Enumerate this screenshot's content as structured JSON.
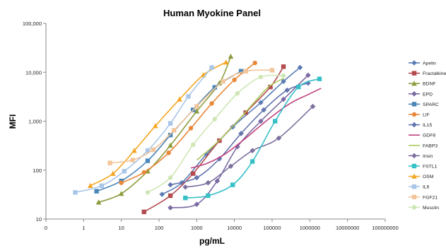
{
  "chart_data": {
    "type": "line",
    "title": "Human Myokine Panel",
    "xlabel": "pg/mL",
    "ylabel": "MFI",
    "x_scale": "log",
    "y_scale": "log",
    "xlim": [
      0.1,
      100000000
    ],
    "ylim": [
      10,
      100000
    ],
    "x_ticks": [
      "0",
      "1",
      "10",
      "100",
      "1000",
      "10000",
      "100000",
      "1000000",
      "10000000",
      "100000000"
    ],
    "y_ticks": [
      "10",
      "100",
      "1,000",
      "10,000",
      "100,000"
    ],
    "grid": false,
    "legend_position": "right",
    "series": [
      {
        "name": "Apelin",
        "color": "#5b7db5",
        "marker": "diamond",
        "points": [
          [
            120,
            32
          ],
          [
            400,
            55
          ],
          [
            1800,
            210
          ],
          [
            9000,
            760
          ],
          [
            50000,
            2400
          ],
          [
            200000,
            6500
          ],
          [
            550000,
            12500
          ]
        ]
      },
      {
        "name": "Fractalkine",
        "color": "#b24a4e",
        "marker": "square",
        "points": [
          [
            40,
            14
          ],
          [
            200,
            30
          ],
          [
            800,
            85
          ],
          [
            4000,
            400
          ],
          [
            20000,
            1500
          ],
          [
            90000,
            5000
          ],
          [
            200000,
            13000
          ]
        ]
      },
      {
        "name": "BDNF",
        "color": "#8c9a3c",
        "marker": "triangle",
        "points": [
          [
            2.5,
            22
          ],
          [
            10,
            33
          ],
          [
            50,
            95
          ],
          [
            200,
            320
          ],
          [
            1000,
            1600
          ],
          [
            4000,
            6000
          ],
          [
            8000,
            21000
          ]
        ]
      },
      {
        "name": "EPD",
        "color": "#7a6aa3",
        "marker": "diamond",
        "points": [
          [
            200,
            17
          ],
          [
            1000,
            20
          ],
          [
            3500,
            60
          ],
          [
            12000,
            300
          ],
          [
            50000,
            1000
          ],
          [
            200000,
            2800
          ],
          [
            900000,
            8700
          ]
        ]
      },
      {
        "name": "SPARC",
        "color": "#4a86b8",
        "marker": "square",
        "points": [
          [
            2.2,
            37
          ],
          [
            10,
            60
          ],
          [
            50,
            155
          ],
          [
            200,
            520
          ],
          [
            800,
            1700
          ],
          [
            3000,
            4900
          ],
          [
            15000,
            10500
          ]
        ]
      },
      {
        "name": "LIF",
        "color": "#e8883a",
        "marker": "circle",
        "points": [
          [
            10,
            55
          ],
          [
            40,
            90
          ],
          [
            180,
            225
          ],
          [
            700,
            720
          ],
          [
            2500,
            2300
          ],
          [
            10000,
            7000
          ],
          [
            35000,
            15500
          ]
        ]
      },
      {
        "name": "IL15",
        "color": "#6474ae",
        "marker": "diamond",
        "points": [
          [
            200,
            50
          ],
          [
            1000,
            70
          ],
          [
            4000,
            170
          ],
          [
            15000,
            560
          ],
          [
            60000,
            1700
          ],
          [
            250000,
            4300
          ],
          [
            900000,
            6000
          ]
        ]
      },
      {
        "name": "GDF8",
        "color": "#c0427e",
        "marker": "none",
        "points": [
          [
            700,
            110
          ],
          [
            2000,
            140
          ],
          [
            6000,
            220
          ],
          [
            20000,
            450
          ],
          [
            80000,
            1100
          ],
          [
            300000,
            2300
          ],
          [
            900000,
            3500
          ],
          [
            2000000,
            4700
          ]
        ]
      },
      {
        "name": "FABP3",
        "color": "#a9c95a",
        "marker": "none",
        "points": [
          [
            1000,
            160
          ],
          [
            3000,
            330
          ],
          [
            10000,
            850
          ],
          [
            30000,
            2200
          ],
          [
            80000,
            5000
          ],
          [
            200000,
            7500
          ]
        ]
      },
      {
        "name": "Irisin",
        "color": "#7d6f9e",
        "marker": "diamond",
        "points": [
          [
            500,
            45
          ],
          [
            2000,
            55
          ],
          [
            8000,
            120
          ],
          [
            30000,
            250
          ],
          [
            150000,
            450
          ],
          [
            1200000,
            2000
          ]
        ]
      },
      {
        "name": "FSTL1",
        "color": "#35c0c8",
        "marker": "square",
        "points": [
          [
            500,
            27
          ],
          [
            2000,
            30
          ],
          [
            9000,
            50
          ],
          [
            30000,
            150
          ],
          [
            120000,
            1000
          ],
          [
            500000,
            5000
          ],
          [
            1800000,
            7300
          ]
        ]
      },
      {
        "name": "OSM",
        "color": "#f5a623",
        "marker": "triangle",
        "points": [
          [
            1.5,
            48
          ],
          [
            6,
            85
          ],
          [
            22,
            250
          ],
          [
            80,
            800
          ],
          [
            350,
            2800
          ],
          [
            1500,
            8800
          ],
          [
            6000,
            16000
          ]
        ]
      },
      {
        "name": "IL6",
        "color": "#a9c6e8",
        "marker": "square",
        "points": [
          [
            0.6,
            35
          ],
          [
            3,
            48
          ],
          [
            12,
            95
          ],
          [
            50,
            250
          ],
          [
            200,
            900
          ],
          [
            600,
            3200
          ],
          [
            2500,
            12500
          ]
        ]
      },
      {
        "name": "FGF21",
        "color": "#f2c59a",
        "marker": "square",
        "points": [
          [
            5,
            140
          ],
          [
            20,
            160
          ],
          [
            70,
            260
          ],
          [
            250,
            650
          ],
          [
            1000,
            2000
          ],
          [
            5000,
            6500
          ],
          [
            20000,
            10500
          ],
          [
            100000,
            11000
          ]
        ]
      },
      {
        "name": "Musclin",
        "color": "#cfe6b5",
        "marker": "circle",
        "points": [
          [
            50,
            35
          ],
          [
            200,
            70
          ],
          [
            800,
            330
          ],
          [
            3000,
            1100
          ],
          [
            12000,
            3700
          ],
          [
            50000,
            8000
          ],
          [
            200000,
            8500
          ]
        ]
      }
    ]
  }
}
